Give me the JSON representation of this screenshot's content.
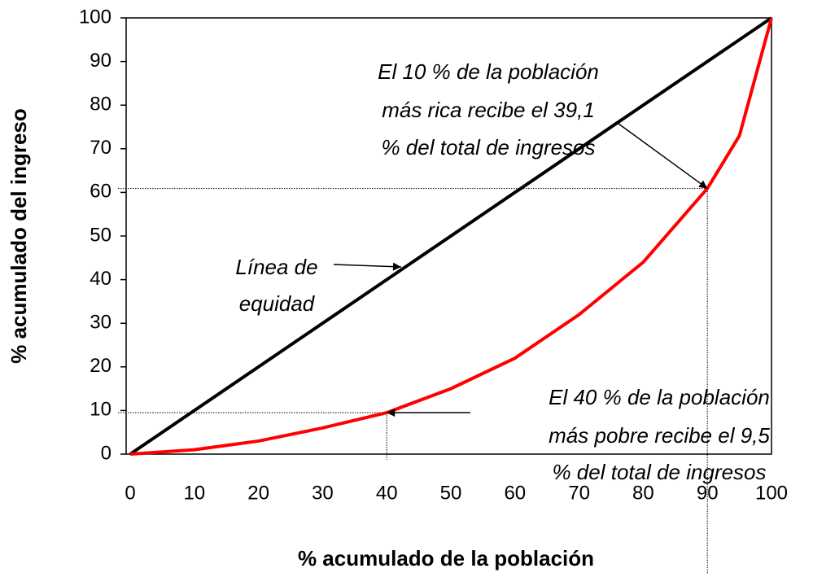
{
  "chart_data": {
    "type": "line",
    "x_label": "% acumulado de la población",
    "y_label": "% acumulado del ingreso",
    "xlim": [
      0,
      100
    ],
    "ylim": [
      0,
      100
    ],
    "xticks": [
      0,
      10,
      20,
      30,
      40,
      50,
      60,
      70,
      80,
      90,
      100
    ],
    "yticks": [
      0,
      10,
      20,
      30,
      40,
      50,
      60,
      70,
      80,
      90,
      100
    ],
    "series": [
      {
        "color": "#000000",
        "x": [
          0,
          100
        ],
        "values": [
          0,
          100
        ]
      },
      {
        "color": "#ff0000",
        "x": [
          0,
          10,
          20,
          30,
          40,
          50,
          60,
          70,
          80,
          90,
          95,
          100
        ],
        "values": [
          0,
          1,
          3,
          6,
          9.5,
          15,
          22,
          32,
          44,
          60.9,
          73,
          100
        ]
      }
    ],
    "annotations": [
      {
        "lines": [
          "El 10 % de la población",
          "más rica recibe  el 39,1",
          "% del total de ingresos"
        ]
      },
      {
        "lines": [
          "Línea de",
          "equidad"
        ]
      },
      {
        "lines": [
          "El 40 % de la población",
          "más pobre recibe  el 9,5",
          "% del total de ingresos"
        ]
      }
    ]
  }
}
